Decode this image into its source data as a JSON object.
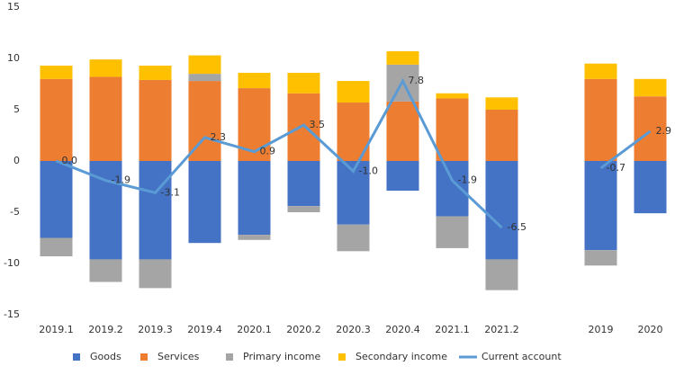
{
  "chart_data": {
    "type": "bar",
    "categories": [
      "2019.1",
      "2019.2",
      "2019.3",
      "2019.4",
      "2020.1",
      "2020.2",
      "2020.3",
      "2020.4",
      "2021.1",
      "2021.2",
      null,
      "2019",
      "2020"
    ],
    "series": [
      {
        "name": "Goods",
        "type": "bar",
        "color": "#4472c4",
        "values": [
          -7.5,
          -9.6,
          -9.6,
          -8.0,
          -7.2,
          -4.4,
          -6.2,
          -2.9,
          -5.4,
          -9.6,
          null,
          -8.7,
          -5.1
        ]
      },
      {
        "name": "Services",
        "type": "bar",
        "color": "#ed7d31",
        "values": [
          8.0,
          8.2,
          7.9,
          7.8,
          7.1,
          6.6,
          5.7,
          5.8,
          6.1,
          5.0,
          null,
          8.0,
          6.3
        ]
      },
      {
        "name": "Primary income",
        "type": "bar",
        "color": "#a5a5a5",
        "values": [
          -1.8,
          -2.2,
          -2.8,
          0.7,
          -0.5,
          -0.6,
          -2.6,
          3.6,
          -3.1,
          -3.0,
          null,
          -1.5,
          0
        ]
      },
      {
        "name": "Secondary income",
        "type": "bar",
        "color": "#ffc000",
        "values": [
          1.3,
          1.7,
          1.4,
          1.8,
          1.5,
          2.0,
          2.1,
          1.3,
          0.5,
          1.2,
          null,
          1.5,
          1.7
        ]
      },
      {
        "name": "Current account",
        "type": "line",
        "color": "#5b9bd5",
        "values": [
          0,
          -1.9,
          -3.1,
          2.3,
          0.9,
          3.5,
          -1.0,
          7.8,
          -1.9,
          -6.5,
          null,
          -0.7,
          2.9
        ],
        "value_labels": [
          "0.0",
          "-1.9",
          "-3.1",
          "2.3",
          "0.9",
          "3.5",
          "-1.0",
          "7.8",
          "-1.9",
          "-6.5",
          null,
          "-0.7",
          "2.9"
        ]
      }
    ],
    "ylim": [
      -15,
      15
    ],
    "yticks": [
      -15,
      -10,
      -5,
      0,
      5,
      10,
      15
    ],
    "grid": false,
    "legend": "bottom"
  }
}
